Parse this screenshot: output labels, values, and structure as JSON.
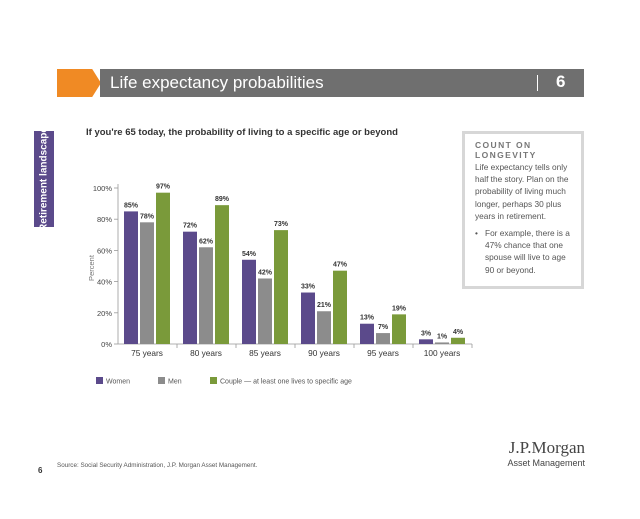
{
  "header": {
    "title": "Life expectancy probabilities",
    "page_number": "6"
  },
  "side_tab": {
    "label": "Retirement landscape"
  },
  "callout": {
    "heading": "COUNT ON LONGEVITY",
    "body": "Life expectancy tells only half the story. Plan on the probability of living much longer, perhaps 30 plus years in retirement.",
    "bullet": "For example, there is a 47% chance that one spouse will live to age 90 or beyond."
  },
  "chart_data": {
    "type": "bar",
    "title": "If you're 65 today, the probability of living to a specific age or beyond",
    "ylabel": "Percent",
    "xlabel": "",
    "ylim": [
      0,
      100
    ],
    "yticks": [
      "0%",
      "20%",
      "40%",
      "60%",
      "80%",
      "100%"
    ],
    "categories": [
      "75 years",
      "80 years",
      "85 years",
      "90 years",
      "95 years",
      "100 years"
    ],
    "series": [
      {
        "name": "Women",
        "color": "#5b4a8b",
        "values": [
          85,
          72,
          54,
          33,
          13,
          3
        ]
      },
      {
        "name": "Men",
        "color": "#8c8c8c",
        "values": [
          78,
          62,
          42,
          21,
          7,
          1
        ]
      },
      {
        "name": "Couple — at least one lives to specific age",
        "color": "#7a9a3a",
        "values": [
          97,
          89,
          73,
          47,
          19,
          4
        ]
      }
    ],
    "legend_position": "bottom-left",
    "grid": false
  },
  "footer": {
    "source": "Source: Social Security Administration, J.P. Morgan Asset Management.",
    "page_number": "6"
  },
  "logo": {
    "name": "J.P.Morgan",
    "subtitle": "Asset Management"
  }
}
